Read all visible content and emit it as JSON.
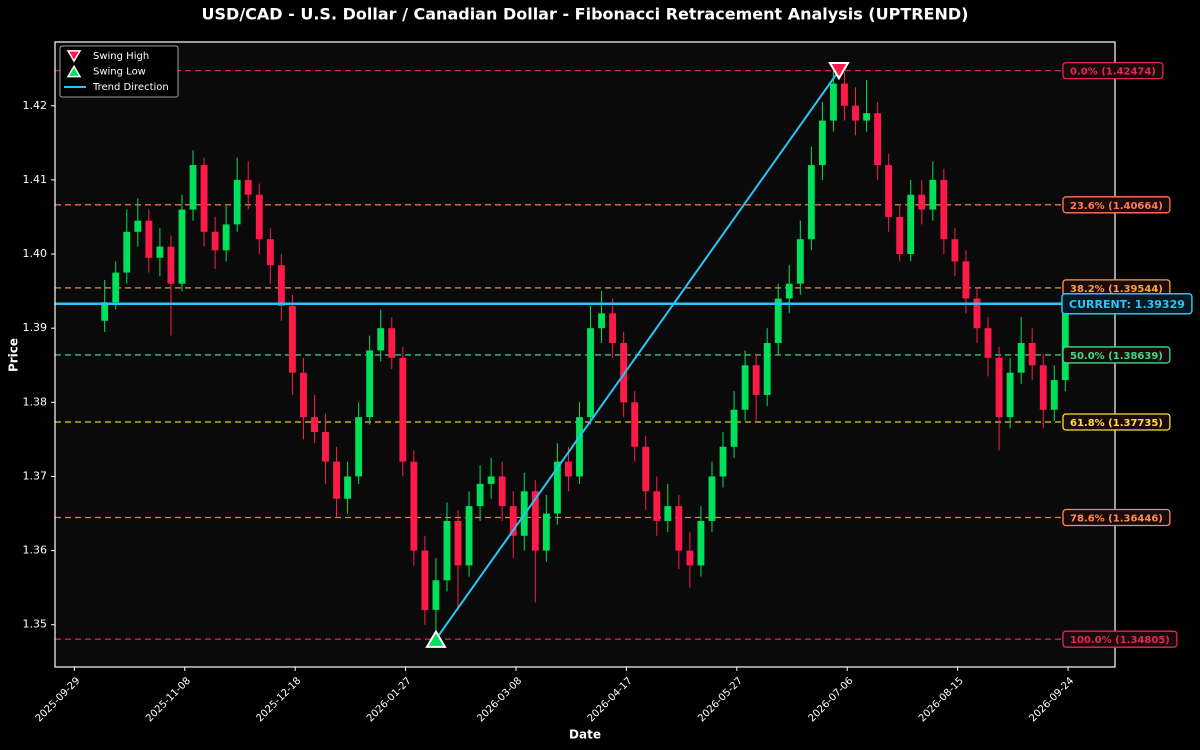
{
  "chart_data": {
    "type": "candlestick",
    "title": "USD/CAD - U.S. Dollar / Canadian Dollar - Fibonacci Retracement Analysis (UPTREND)",
    "xlabel": "Date",
    "ylabel": "Price",
    "x": [
      "2025-10-10",
      "2025-10-14",
      "2025-10-18",
      "2025-10-22",
      "2025-10-26",
      "2025-10-30",
      "2025-11-03",
      "2025-11-07",
      "2025-11-11",
      "2025-11-15",
      "2025-11-19",
      "2025-11-23",
      "2025-11-27",
      "2025-12-01",
      "2025-12-05",
      "2025-12-09",
      "2025-12-13",
      "2025-12-17",
      "2025-12-21",
      "2025-12-25",
      "2025-12-29",
      "2026-01-02",
      "2026-01-06",
      "2026-01-10",
      "2026-01-14",
      "2026-01-18",
      "2026-01-22",
      "2026-01-26",
      "2026-01-30",
      "2026-02-03",
      "2026-02-07",
      "2026-02-11",
      "2026-02-15",
      "2026-02-19",
      "2026-02-23",
      "2026-02-27",
      "2026-03-03",
      "2026-03-07",
      "2026-03-11",
      "2026-03-15",
      "2026-03-19",
      "2026-03-23",
      "2026-03-27",
      "2026-03-31",
      "2026-04-04",
      "2026-04-08",
      "2026-04-12",
      "2026-04-16",
      "2026-04-20",
      "2026-04-24",
      "2026-04-28",
      "2026-05-02",
      "2026-05-06",
      "2026-05-10",
      "2026-05-14",
      "2026-05-18",
      "2026-05-22",
      "2026-05-26",
      "2026-05-30",
      "2026-06-03",
      "2026-06-07",
      "2026-06-11",
      "2026-06-15",
      "2026-06-19",
      "2026-06-23",
      "2026-06-27",
      "2026-07-01",
      "2026-07-05",
      "2026-07-09",
      "2026-07-13",
      "2026-07-17",
      "2026-07-21",
      "2026-07-25",
      "2026-07-29",
      "2026-08-02",
      "2026-08-06",
      "2026-08-10",
      "2026-08-14",
      "2026-08-18",
      "2026-08-22",
      "2026-08-26",
      "2026-08-30",
      "2026-09-03",
      "2026-09-07",
      "2026-09-11",
      "2026-09-15",
      "2026-09-19",
      "2026-09-23"
    ],
    "open": [
      1.391,
      1.3935,
      1.3975,
      1.403,
      1.4045,
      1.3995,
      1.401,
      1.396,
      1.406,
      1.412,
      1.403,
      1.4005,
      1.404,
      1.41,
      1.408,
      1.402,
      1.3985,
      1.393,
      1.384,
      1.378,
      1.376,
      1.372,
      1.367,
      1.37,
      1.378,
      1.387,
      1.39,
      1.386,
      1.372,
      1.36,
      1.352,
      1.356,
      1.364,
      1.358,
      1.366,
      1.369,
      1.37,
      1.366,
      1.362,
      1.368,
      1.36,
      1.365,
      1.372,
      1.37,
      1.378,
      1.39,
      1.392,
      1.388,
      1.38,
      1.374,
      1.368,
      1.364,
      1.366,
      1.36,
      1.358,
      1.364,
      1.37,
      1.374,
      1.379,
      1.385,
      1.381,
      1.388,
      1.394,
      1.396,
      1.402,
      1.412,
      1.418,
      1.423,
      1.42,
      1.418,
      1.419,
      1.412,
      1.405,
      1.4,
      1.408,
      1.406,
      1.41,
      1.402,
      1.399,
      1.394,
      1.39,
      1.386,
      1.378,
      1.384,
      1.388,
      1.385,
      1.379,
      1.383
    ],
    "high": [
      1.3965,
      1.399,
      1.406,
      1.4075,
      1.406,
      1.4035,
      1.4025,
      1.408,
      1.414,
      1.413,
      1.405,
      1.4065,
      1.413,
      1.4125,
      1.4095,
      1.4035,
      1.4,
      1.3945,
      1.386,
      1.381,
      1.3785,
      1.374,
      1.372,
      1.38,
      1.389,
      1.3925,
      1.3915,
      1.3875,
      1.3735,
      1.362,
      1.359,
      1.3665,
      1.3655,
      1.368,
      1.3715,
      1.3725,
      1.372,
      1.368,
      1.3705,
      1.3695,
      1.3675,
      1.3745,
      1.374,
      1.38,
      1.393,
      1.395,
      1.394,
      1.3895,
      1.3815,
      1.3755,
      1.37,
      1.369,
      1.3675,
      1.3625,
      1.366,
      1.372,
      1.376,
      1.3815,
      1.387,
      1.3865,
      1.39,
      1.396,
      1.3985,
      1.4045,
      1.4145,
      1.4205,
      1.42474,
      1.4245,
      1.4225,
      1.4235,
      1.4205,
      1.4135,
      1.4065,
      1.41,
      1.41,
      1.4125,
      1.4115,
      1.4035,
      1.4005,
      1.3955,
      1.3915,
      1.3875,
      1.386,
      1.3915,
      1.39,
      1.3865,
      1.385,
      1.3945
    ],
    "low": [
      1.3895,
      1.3925,
      1.396,
      1.401,
      1.3975,
      1.397,
      1.389,
      1.395,
      1.4045,
      1.401,
      1.398,
      1.399,
      1.403,
      1.406,
      1.4,
      1.396,
      1.391,
      1.381,
      1.375,
      1.3745,
      1.369,
      1.3645,
      1.365,
      1.369,
      1.377,
      1.3855,
      1.3845,
      1.37,
      1.358,
      1.35,
      1.34805,
      1.3545,
      1.352,
      1.3565,
      1.364,
      1.367,
      1.364,
      1.359,
      1.36,
      1.353,
      1.3585,
      1.3635,
      1.368,
      1.369,
      1.377,
      1.388,
      1.386,
      1.378,
      1.372,
      1.3655,
      1.362,
      1.3625,
      1.3575,
      1.355,
      1.3565,
      1.3625,
      1.3685,
      1.3725,
      1.3775,
      1.3775,
      1.3795,
      1.3865,
      1.392,
      1.3945,
      1.4005,
      1.41,
      1.4165,
      1.418,
      1.416,
      1.4165,
      1.41,
      1.403,
      1.399,
      1.399,
      1.404,
      1.4045,
      1.4,
      1.397,
      1.392,
      1.388,
      1.3835,
      1.3735,
      1.3765,
      1.3825,
      1.383,
      1.3765,
      1.3775,
      1.3815
    ],
    "close": [
      1.3935,
      1.3975,
      1.403,
      1.4045,
      1.3995,
      1.401,
      1.396,
      1.406,
      1.412,
      1.403,
      1.4005,
      1.404,
      1.41,
      1.408,
      1.402,
      1.3985,
      1.393,
      1.384,
      1.378,
      1.376,
      1.372,
      1.367,
      1.37,
      1.378,
      1.387,
      1.39,
      1.386,
      1.372,
      1.36,
      1.352,
      1.356,
      1.364,
      1.358,
      1.366,
      1.369,
      1.37,
      1.366,
      1.362,
      1.368,
      1.36,
      1.365,
      1.372,
      1.37,
      1.378,
      1.39,
      1.392,
      1.388,
      1.38,
      1.374,
      1.368,
      1.364,
      1.366,
      1.36,
      1.358,
      1.364,
      1.37,
      1.374,
      1.379,
      1.385,
      1.381,
      1.388,
      1.394,
      1.396,
      1.402,
      1.412,
      1.418,
      1.423,
      1.42,
      1.418,
      1.419,
      1.412,
      1.405,
      1.4,
      1.408,
      1.406,
      1.41,
      1.402,
      1.399,
      1.394,
      1.39,
      1.386,
      1.378,
      1.384,
      1.388,
      1.385,
      1.379,
      1.383,
      1.393
    ],
    "up_color": "#00e05a",
    "down_color": "#ff1a4a",
    "xlim": [
      "2025-09-22",
      "2026-10-11"
    ],
    "xticks": [
      "2025-09-29",
      "2025-11-08",
      "2025-12-18",
      "2026-01-27",
      "2026-03-08",
      "2026-04-17",
      "2026-05-27",
      "2026-07-06",
      "2026-08-15",
      "2026-09-24"
    ],
    "ylim": [
      1.3443,
      1.4286
    ],
    "yticks": [
      1.35,
      1.36,
      1.37,
      1.38,
      1.39,
      {
        "value": 1.4,
        "label": "1.40"
      },
      1.41,
      1.42
    ],
    "fib_levels": [
      {
        "label": "0.0% (1.42474)",
        "value": 1.42474,
        "color": "#e8245a"
      },
      {
        "label": "23.6% (1.40664)",
        "value": 1.40664,
        "color": "#ff7a50"
      },
      {
        "label": "38.2% (1.39544)",
        "value": 1.39544,
        "color": "#ffa040"
      },
      {
        "label": "50.0% (1.38639)",
        "value": 1.38639,
        "color": "#3ddc84"
      },
      {
        "label": "61.8% (1.37735)",
        "value": 1.37735,
        "color": "#ffe033"
      },
      {
        "label": "78.6% (1.36446)",
        "value": 1.36446,
        "color": "#ff8c50"
      },
      {
        "label": "100.0% (1.34805)",
        "value": 1.34805,
        "color": "#e8245a"
      }
    ],
    "current": {
      "label": "CURRENT: 1.39329",
      "value": 1.39329,
      "color": "#29c5f6"
    },
    "swing_high": {
      "name": "Swing High",
      "x": "2026-07-03",
      "value": 1.42474,
      "color": "#ff1a4a"
    },
    "swing_low": {
      "name": "Swing Low",
      "x": "2026-02-07",
      "value": 1.34805,
      "color": "#00e05a"
    },
    "trend": {
      "name": "Trend Direction",
      "color": "#29c5f6"
    },
    "legend": "upper left"
  }
}
